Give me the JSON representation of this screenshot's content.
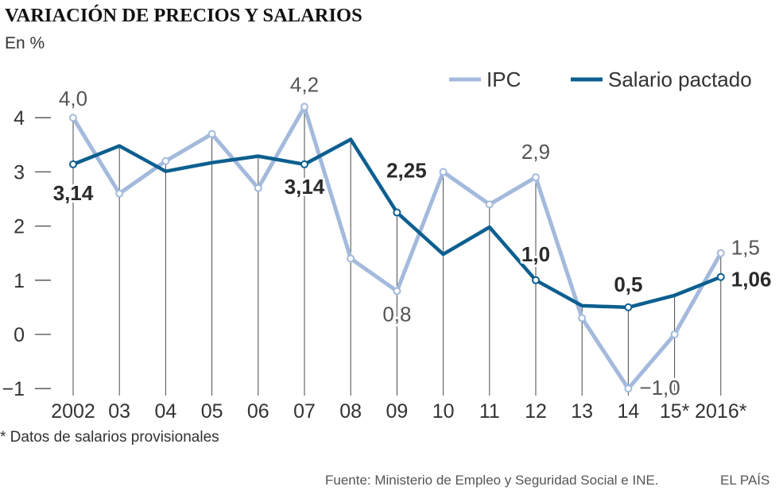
{
  "colors": {
    "ipc": "#a3badc",
    "salario_pactado": "#0c5f8f",
    "text": "#333333",
    "rule": "#4a4a4a"
  },
  "footnote": "* Datos de salarios provisionales",
  "source": "Fuente: Ministerio de Empleo y Seguridad Social e INE.",
  "brand": "EL PAÍS",
  "chart_data": {
    "type": "line",
    "title": "VARIACIÓN DE PRECIOS Y SALARIOS",
    "ylabel": "En %",
    "xlabel": "",
    "categories": [
      "2002",
      "03",
      "04",
      "05",
      "06",
      "07",
      "08",
      "09",
      "10",
      "11",
      "12",
      "13",
      "14",
      "15*",
      "2016*"
    ],
    "ylim": [
      -1,
      4
    ],
    "yticks": [
      4,
      3,
      2,
      1,
      0,
      -1
    ],
    "ytick_labels": [
      "4",
      "3",
      "2",
      "1",
      "0",
      "−1"
    ],
    "grid": false,
    "legend_position": "top-right",
    "series": [
      {
        "name": "IPC",
        "color": "#a3badc",
        "values": [
          4.0,
          2.6,
          3.2,
          3.7,
          2.7,
          4.2,
          1.4,
          0.8,
          3.0,
          2.4,
          2.9,
          0.3,
          -1.0,
          0.0,
          1.5
        ]
      },
      {
        "name": "Salario pactado",
        "color": "#0c5f8f",
        "values": [
          3.14,
          3.48,
          3.01,
          3.17,
          3.29,
          3.14,
          3.6,
          2.25,
          1.48,
          1.98,
          1.0,
          0.53,
          0.5,
          0.72,
          1.06
        ]
      }
    ],
    "annotations": [
      {
        "series_index": 0,
        "category_index": 0,
        "text": "4,0"
      },
      {
        "series_index": 1,
        "category_index": 0,
        "text": "3,14"
      },
      {
        "series_index": 0,
        "category_index": 5,
        "text": "4,2"
      },
      {
        "series_index": 1,
        "category_index": 5,
        "text": "3,14"
      },
      {
        "series_index": 1,
        "category_index": 7,
        "text": "2,25"
      },
      {
        "series_index": 0,
        "category_index": 7,
        "text": "0,8"
      },
      {
        "series_index": 0,
        "category_index": 10,
        "text": "2,9"
      },
      {
        "series_index": 1,
        "category_index": 10,
        "text": "1,0"
      },
      {
        "series_index": 1,
        "category_index": 12,
        "text": "0,5"
      },
      {
        "series_index": 0,
        "category_index": 12,
        "text": "−1,0"
      },
      {
        "series_index": 0,
        "category_index": 14,
        "text": "1,5"
      },
      {
        "series_index": 1,
        "category_index": 14,
        "text": "1,06"
      }
    ]
  }
}
